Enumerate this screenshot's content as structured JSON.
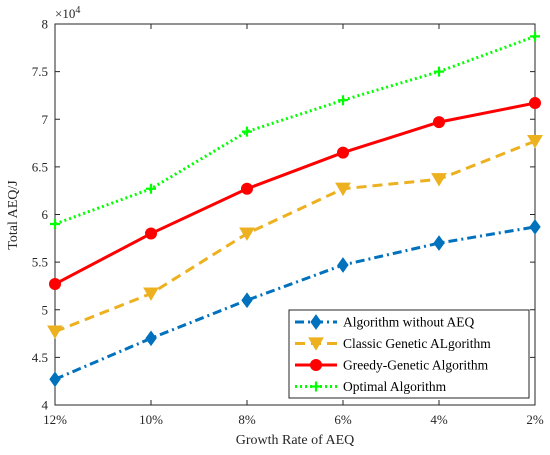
{
  "chart_data": {
    "type": "line",
    "xlabel": "Growth Rate of AEQ",
    "ylabel": "Total AEQ/J",
    "categories": [
      "12%",
      "10%",
      "8%",
      "6%",
      "4%",
      "2%"
    ],
    "y_scale_label": "×10",
    "y_scale_exponent": "4",
    "ylim": [
      40000,
      80000
    ],
    "yticks": [
      40000,
      45000,
      50000,
      55000,
      60000,
      65000,
      70000,
      75000,
      80000
    ],
    "ytick_labels": [
      "4",
      "4.5",
      "5",
      "5.5",
      "6",
      "6.5",
      "7",
      "7.5",
      "8"
    ],
    "grid": false,
    "legend_position": "bottom-right",
    "series": [
      {
        "name": "Algorithm without AEQ",
        "values": [
          42700,
          47000,
          51000,
          54700,
          57000,
          58700
        ],
        "color": "#0072BD",
        "line_style": "dash-dot",
        "marker": "diamond"
      },
      {
        "name": "Classic Genetic ALgorithm",
        "values": [
          47700,
          51700,
          58000,
          62700,
          63700,
          67700
        ],
        "color": "#EDB120",
        "line_style": "dashed",
        "marker": "triangle-down"
      },
      {
        "name": "Greedy-Genetic Algorithm",
        "values": [
          52700,
          58000,
          62700,
          66500,
          69700,
          71700
        ],
        "color": "#FF0000",
        "line_style": "solid",
        "marker": "circle"
      },
      {
        "name": "Optimal Algorithm",
        "values": [
          59000,
          62700,
          68700,
          72000,
          75000,
          78700
        ],
        "color": "#00FF00",
        "line_style": "dotted",
        "marker": "plus"
      }
    ]
  }
}
